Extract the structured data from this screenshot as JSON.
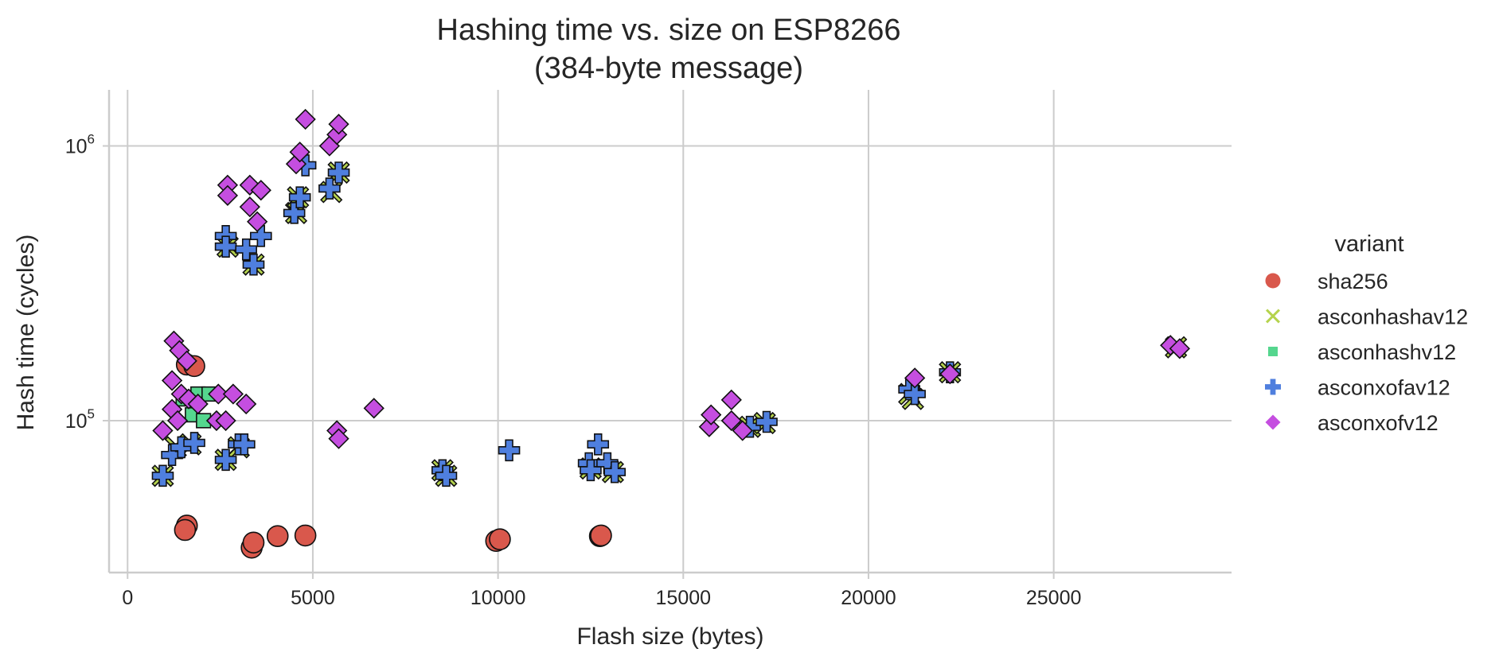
{
  "chart_data": {
    "type": "scatter",
    "title_line1": "Hashing time vs. size on ESP8266",
    "title_line2": "(384-byte message)",
    "xlabel": "Flash size (bytes)",
    "ylabel": "Hash time (cycles)",
    "xscale": "linear",
    "yscale": "log",
    "xlim": [
      -500,
      29800
    ],
    "ylim": [
      28000,
      1600000
    ],
    "x_ticks": [
      0,
      5000,
      10000,
      15000,
      20000,
      25000
    ],
    "x_tick_labels": [
      "0",
      "5000",
      "10000",
      "15000",
      "20000",
      "25000"
    ],
    "y_ticks": [
      100000,
      1000000
    ],
    "y_tick_labels": [
      {
        "base": "10",
        "exp": "5"
      },
      {
        "base": "10",
        "exp": "6"
      }
    ],
    "grid": true,
    "legend": {
      "title": "variant",
      "placement": "right",
      "entries": [
        "sha256",
        "asconhashav12",
        "asconhashv12",
        "asconxofav12",
        "asconxofv12"
      ]
    },
    "series": [
      {
        "name": "sha256",
        "marker": "circle",
        "color": "#d9584c",
        "points": [
          [
            1600,
            160000
          ],
          [
            1800,
            158000
          ],
          [
            1600,
            41500
          ],
          [
            1550,
            40000
          ],
          [
            3350,
            34500
          ],
          [
            3400,
            36000
          ],
          [
            4050,
            38000
          ],
          [
            4800,
            38200
          ],
          [
            9950,
            36500
          ],
          [
            10050,
            37000
          ],
          [
            12750,
            38000
          ],
          [
            12780,
            38200
          ]
        ]
      },
      {
        "name": "asconhashav12",
        "marker": "x",
        "color": "#b5d34d",
        "points": [
          [
            950,
            63000
          ],
          [
            1300,
            80000
          ],
          [
            1700,
            82000
          ],
          [
            2650,
            72000
          ],
          [
            3000,
            80000
          ],
          [
            8500,
            66000
          ],
          [
            8600,
            63000
          ],
          [
            12500,
            67000
          ],
          [
            13100,
            65000
          ],
          [
            2700,
            430000
          ],
          [
            3400,
            370000
          ],
          [
            4550,
            570000
          ],
          [
            4600,
            650000
          ],
          [
            5500,
            680000
          ],
          [
            5700,
            800000
          ],
          [
            21100,
            125000
          ],
          [
            21200,
            120000
          ],
          [
            22200,
            150000
          ],
          [
            16800,
            95000
          ],
          [
            17200,
            98000
          ],
          [
            28300,
            185000
          ]
        ]
      },
      {
        "name": "asconhashv12",
        "marker": "square",
        "color": "#55d68e",
        "points": [
          [
            1900,
            125000
          ],
          [
            2200,
            125000
          ],
          [
            1750,
            105000
          ],
          [
            2050,
            100000
          ],
          [
            1500,
            120000
          ]
        ]
      },
      {
        "name": "asconxofav12",
        "marker": "plus",
        "color": "#4f7fde",
        "points": [
          [
            950,
            63000
          ],
          [
            1200,
            75000
          ],
          [
            1450,
            80000
          ],
          [
            1800,
            83000
          ],
          [
            2650,
            72000
          ],
          [
            3000,
            82000
          ],
          [
            3150,
            82000
          ],
          [
            2650,
            470000
          ],
          [
            2650,
            430000
          ],
          [
            3200,
            420000
          ],
          [
            3400,
            370000
          ],
          [
            3600,
            470000
          ],
          [
            4500,
            570000
          ],
          [
            4650,
            650000
          ],
          [
            4800,
            850000
          ],
          [
            5450,
            700000
          ],
          [
            5700,
            800000
          ],
          [
            8500,
            66000
          ],
          [
            8600,
            63000
          ],
          [
            10300,
            78000
          ],
          [
            12450,
            70000
          ],
          [
            12500,
            66000
          ],
          [
            12700,
            82000
          ],
          [
            12950,
            70000
          ],
          [
            13150,
            65000
          ],
          [
            16800,
            95000
          ],
          [
            17250,
            99000
          ],
          [
            21100,
            130000
          ],
          [
            21250,
            125000
          ],
          [
            22200,
            150000
          ]
        ]
      },
      {
        "name": "asconxofv12",
        "marker": "diamond",
        "color": "#c54ee0",
        "points": [
          [
            1250,
            195000
          ],
          [
            1400,
            180000
          ],
          [
            1600,
            165000
          ],
          [
            1200,
            140000
          ],
          [
            1450,
            125000
          ],
          [
            1650,
            120000
          ],
          [
            1900,
            115000
          ],
          [
            1200,
            110000
          ],
          [
            1350,
            100000
          ],
          [
            950,
            92000
          ],
          [
            2450,
            125000
          ],
          [
            2850,
            125000
          ],
          [
            3200,
            115000
          ],
          [
            2400,
            100000
          ],
          [
            2650,
            100000
          ],
          [
            2700,
            720000
          ],
          [
            2700,
            660000
          ],
          [
            3300,
            720000
          ],
          [
            3600,
            690000
          ],
          [
            3300,
            600000
          ],
          [
            3500,
            530000
          ],
          [
            4550,
            860000
          ],
          [
            4650,
            950000
          ],
          [
            4800,
            1250000
          ],
          [
            5450,
            1000000
          ],
          [
            5650,
            1100000
          ],
          [
            5700,
            1200000
          ],
          [
            5650,
            92000
          ],
          [
            5700,
            86000
          ],
          [
            6650,
            111000
          ],
          [
            15700,
            95000
          ],
          [
            15750,
            105000
          ],
          [
            16300,
            119000
          ],
          [
            16300,
            100000
          ],
          [
            16600,
            92000
          ],
          [
            21250,
            143000
          ],
          [
            22200,
            148000
          ],
          [
            28150,
            188000
          ],
          [
            28400,
            183000
          ]
        ]
      }
    ]
  }
}
